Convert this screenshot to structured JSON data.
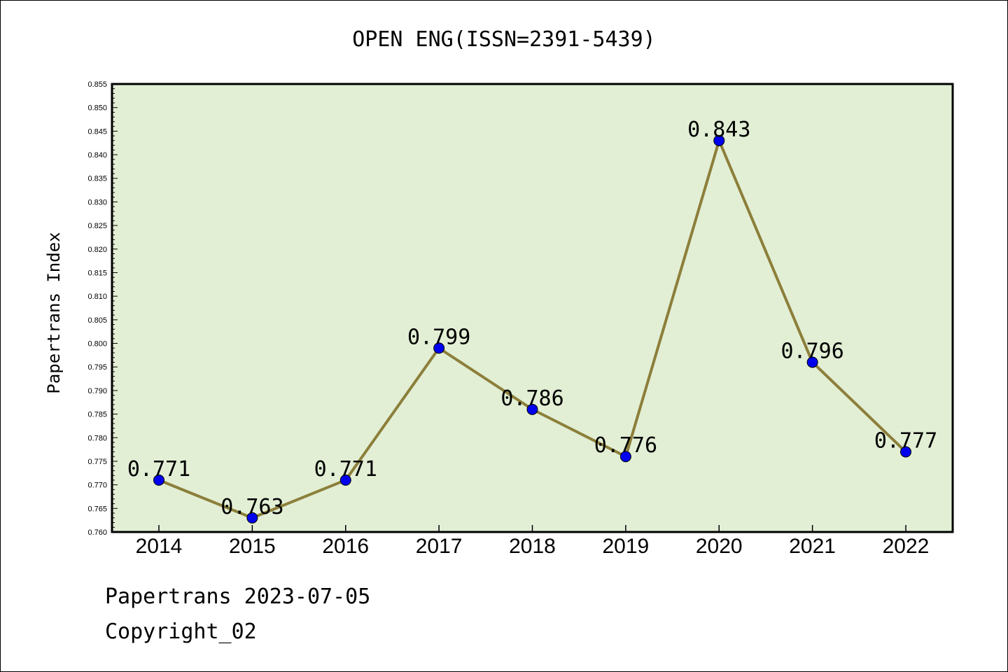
{
  "chart_data": {
    "type": "line",
    "title": "OPEN ENG(ISSN=2391-5439)",
    "xlabel": "",
    "ylabel": "Papertrans Index",
    "categories": [
      "2014",
      "2015",
      "2016",
      "2017",
      "2018",
      "2019",
      "2020",
      "2021",
      "2022"
    ],
    "series": [
      {
        "values": [
          0.771,
          0.763,
          0.771,
          0.799,
          0.786,
          0.776,
          0.843,
          0.796,
          0.777
        ],
        "labels": [
          "0.771",
          "0.763",
          "0.771",
          "0.799",
          "0.786",
          "0.776",
          "0.843",
          "0.796",
          "0.777"
        ]
      }
    ],
    "ylim": [
      0.76,
      0.855
    ],
    "yticks": [
      "0.760",
      "0.765",
      "0.770",
      "0.775",
      "0.780",
      "0.785",
      "0.790",
      "0.795",
      "0.800",
      "0.805",
      "0.810",
      "0.815",
      "0.820",
      "0.825",
      "0.830",
      "0.835",
      "0.840",
      "0.845",
      "0.850",
      "0.855"
    ],
    "grid": false,
    "colors": {
      "plot_bg": "#e2efd5",
      "line": "#8c7f3a",
      "marker": "#0000ee"
    }
  },
  "footer": {
    "line1": "Papertrans 2023-07-05",
    "line2": "Copyright_02"
  }
}
